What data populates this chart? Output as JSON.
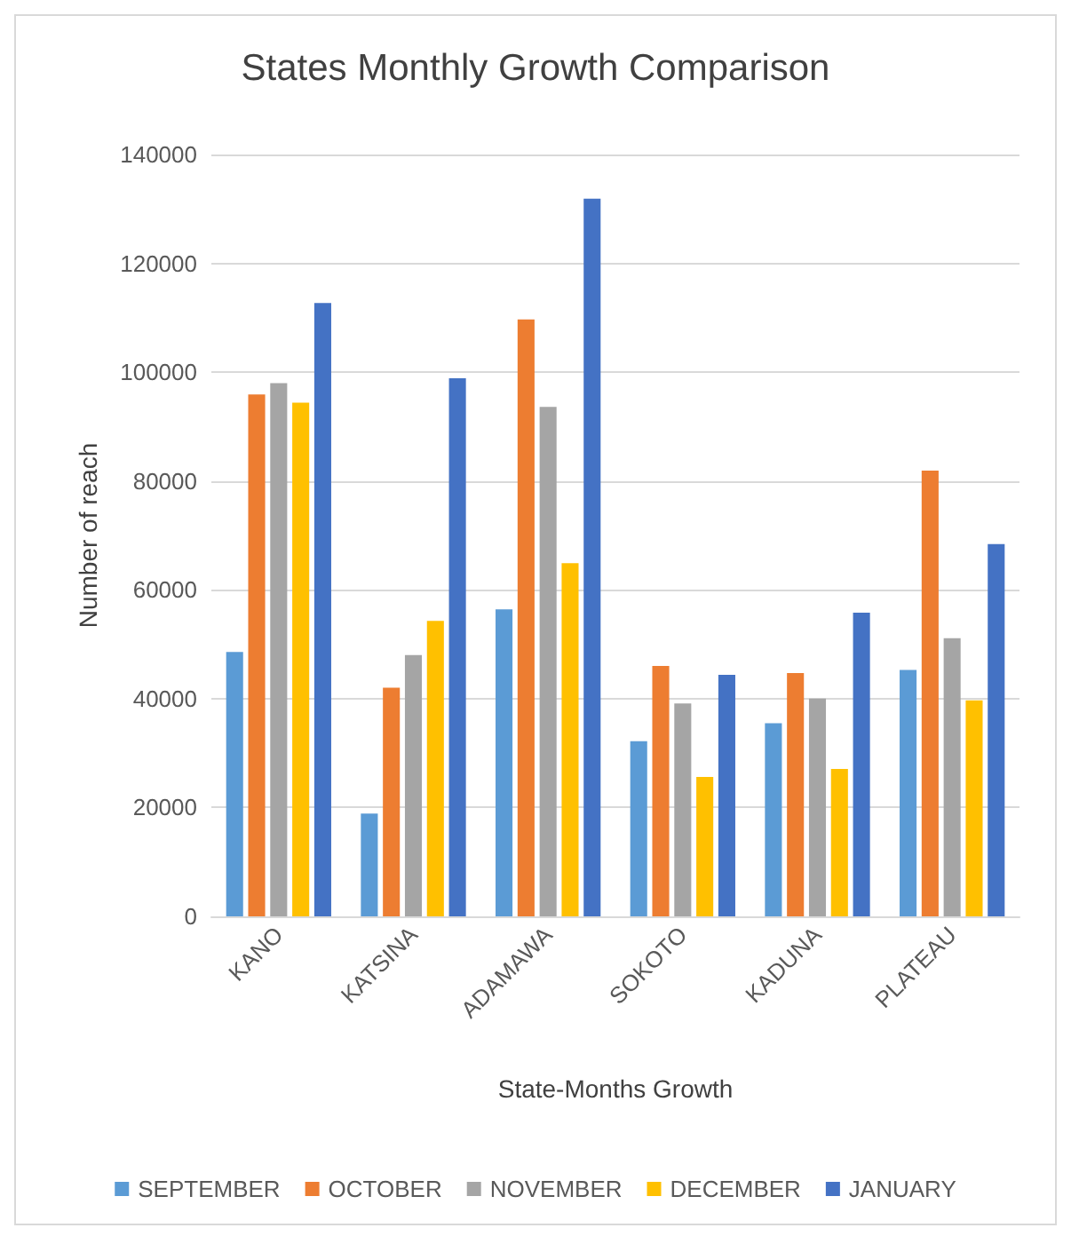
{
  "chart_data": {
    "type": "bar",
    "title": "States Monthly Growth Comparison",
    "xlabel": "State-Months Growth",
    "ylabel": "Number of reach",
    "categories": [
      "KANO",
      "KATSINA",
      "ADAMAWA",
      "SOKOTO",
      "KADUNA",
      "PLATEAU"
    ],
    "series": [
      {
        "name": "SEPTEMBER",
        "color": "#5b9bd5",
        "values": [
          48600,
          18900,
          56400,
          32200,
          35500,
          45300
        ]
      },
      {
        "name": "OCTOBER",
        "color": "#ed7d31",
        "values": [
          95900,
          42000,
          109700,
          46000,
          44700,
          81900
        ]
      },
      {
        "name": "NOVEMBER",
        "color": "#a5a5a5",
        "values": [
          98000,
          48000,
          93600,
          39100,
          40000,
          51100
        ]
      },
      {
        "name": "DECEMBER",
        "color": "#ffc000",
        "values": [
          94400,
          54300,
          64900,
          25600,
          27100,
          39700
        ]
      },
      {
        "name": "JANUARY",
        "color": "#4472c4",
        "values": [
          112700,
          98900,
          131900,
          44400,
          55800,
          68400
        ]
      }
    ],
    "ylim": [
      0,
      140000
    ],
    "yticks": [
      0,
      20000,
      40000,
      60000,
      80000,
      100000,
      120000,
      140000
    ],
    "grid": "y",
    "legend": "bottom"
  }
}
